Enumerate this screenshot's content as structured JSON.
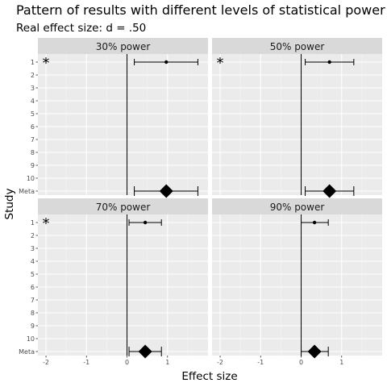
{
  "title": "Pattern of results with different levels of statistical power",
  "subtitle": "Real effect size: d = .50",
  "chart_data": {
    "type": "scatter",
    "xlabel": "Effect size",
    "ylabel": "Study",
    "xlim": [
      -2.2,
      2.0
    ],
    "x_ticks": [
      "-2",
      "-1",
      "0",
      "1"
    ],
    "x_tick_values": [
      -2,
      -1,
      0,
      1
    ],
    "y_categories": [
      "1",
      "2",
      "3",
      "4",
      "5",
      "6",
      "7",
      "8",
      "9",
      "10",
      "Meta"
    ],
    "grid": true,
    "reference_line_x": 0,
    "significance_marker": "*",
    "panels": [
      {
        "strip": "30% power",
        "studies": [
          {
            "study": "1",
            "estimate": 0.97,
            "ci_low": 0.18,
            "ci_high": 1.75,
            "significant": true
          }
        ],
        "meta": {
          "estimate": 0.97,
          "ci_low": 0.18,
          "ci_high": 1.75
        }
      },
      {
        "strip": "50% power",
        "studies": [
          {
            "study": "1",
            "estimate": 0.7,
            "ci_low": 0.1,
            "ci_high": 1.3,
            "significant": true
          }
        ],
        "meta": {
          "estimate": 0.7,
          "ci_low": 0.1,
          "ci_high": 1.3
        }
      },
      {
        "strip": "70% power",
        "studies": [
          {
            "study": "1",
            "estimate": 0.45,
            "ci_low": 0.05,
            "ci_high": 0.85,
            "significant": true
          }
        ],
        "meta": {
          "estimate": 0.45,
          "ci_low": 0.05,
          "ci_high": 0.85
        }
      },
      {
        "strip": "90% power",
        "studies": [
          {
            "study": "1",
            "estimate": 0.33,
            "ci_low": 0.0,
            "ci_high": 0.67,
            "significant": false
          }
        ],
        "meta": {
          "estimate": 0.33,
          "ci_low": 0.0,
          "ci_high": 0.67
        }
      }
    ]
  }
}
